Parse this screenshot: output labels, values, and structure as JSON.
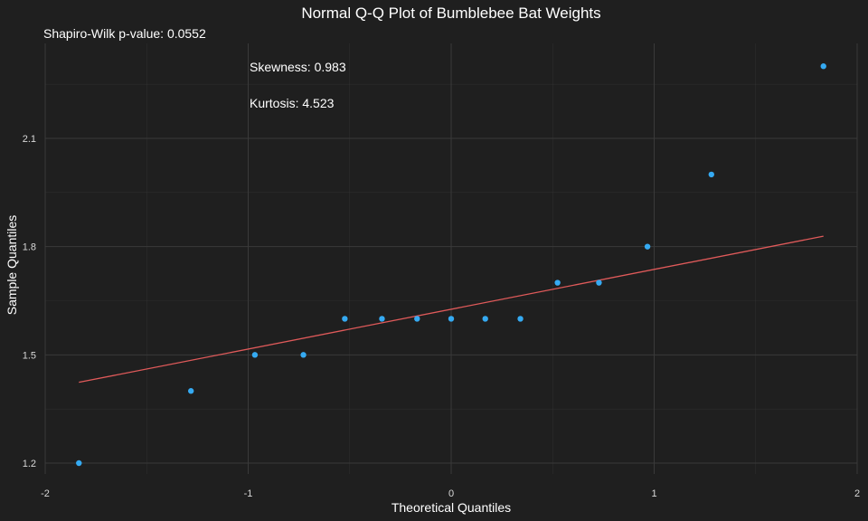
{
  "chart_data": {
    "type": "scatter",
    "title": "Normal Q-Q Plot of Bumblebee Bat Weights",
    "subtitle": "Shapiro-Wilk p-value: 0.0552",
    "xlabel": "Theoretical Quantiles",
    "ylabel": "Sample Quantiles",
    "xlim": [
      -2,
      2
    ],
    "ylim": [
      1.2,
      2.4
    ],
    "x_ticks": [
      "-2",
      "-1",
      "0",
      "1",
      "2"
    ],
    "y_ticks": [
      "1.2",
      "1.5",
      "1.8",
      "2.1"
    ],
    "grid": true,
    "annotations": [
      "Skewness: 0.983",
      "Kurtosis: 4.523"
    ],
    "points": {
      "color": "#35aaf2",
      "x": [
        -1.834,
        -1.282,
        -0.967,
        -0.728,
        -0.524,
        -0.341,
        -0.168,
        0.0,
        0.168,
        0.341,
        0.524,
        0.728,
        0.967,
        1.282,
        1.834
      ],
      "y": [
        1.2,
        1.4,
        1.5,
        1.5,
        1.6,
        1.6,
        1.6,
        1.6,
        1.6,
        1.6,
        1.7,
        1.7,
        1.8,
        2.0,
        2.3
      ]
    },
    "reference_line": {
      "color": "#e05a5a",
      "x": [
        -1.834,
        1.834
      ],
      "y": [
        1.424,
        1.829
      ]
    }
  },
  "colors": {
    "background": "#1f1f1f",
    "grid": "#3a3a3a",
    "text": "#ffffff"
  }
}
